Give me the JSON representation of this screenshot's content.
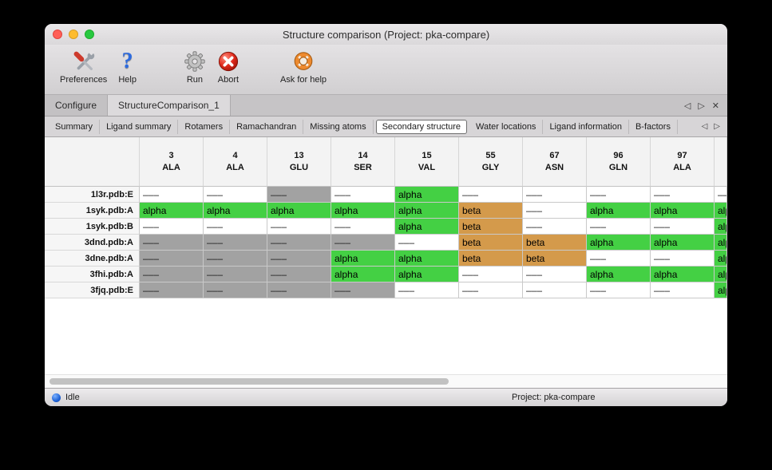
{
  "window": {
    "title": "Structure comparison (Project: pka-compare)"
  },
  "toolbar": {
    "items": [
      {
        "id": "preferences",
        "label": "Preferences",
        "icon": "tools"
      },
      {
        "id": "help",
        "label": "Help",
        "icon": "help"
      },
      {
        "id": "run",
        "label": "Run",
        "icon": "gear"
      },
      {
        "id": "abort",
        "label": "Abort",
        "icon": "abort"
      },
      {
        "id": "ask-for-help",
        "label": "Ask for help",
        "icon": "lifering"
      }
    ]
  },
  "tabbar": {
    "tabs": [
      {
        "label": "Configure",
        "active": false
      },
      {
        "label": "StructureComparison_1",
        "active": true
      }
    ],
    "nav_left": "◁",
    "nav_right": "▷",
    "close": "✕"
  },
  "subtabs": {
    "items": [
      {
        "label": "Summary",
        "active": false
      },
      {
        "label": "Ligand summary",
        "active": false
      },
      {
        "label": "Rotamers",
        "active": false
      },
      {
        "label": "Ramachandran",
        "active": false
      },
      {
        "label": "Missing atoms",
        "active": false
      },
      {
        "label": "Secondary structure",
        "active": true
      },
      {
        "label": "Water locations",
        "active": false
      },
      {
        "label": "Ligand information",
        "active": false
      },
      {
        "label": "B-factors",
        "active": false
      }
    ],
    "nav_left": "◁",
    "nav_right": "▷"
  },
  "table": {
    "columns": [
      {
        "number": "3",
        "residue": "ALA"
      },
      {
        "number": "4",
        "residue": "ALA"
      },
      {
        "number": "13",
        "residue": "GLU"
      },
      {
        "number": "14",
        "residue": "SER"
      },
      {
        "number": "15",
        "residue": "VAL"
      },
      {
        "number": "55",
        "residue": "GLY"
      },
      {
        "number": "67",
        "residue": "ASN"
      },
      {
        "number": "96",
        "residue": "GLN"
      },
      {
        "number": "97",
        "residue": "ALA"
      },
      {
        "number": "",
        "residue": ""
      }
    ],
    "legend": {
      "dash": {
        "text": "–––",
        "bg": "#ffffff",
        "fg": "#1a1a1a"
      },
      "dash_gray": {
        "text": "–––",
        "bg": "#a2a2a2",
        "fg": "#1a1a1a"
      },
      "alpha": {
        "text": "alpha",
        "bg": "#44d044",
        "fg": "#000000"
      },
      "beta": {
        "text": "beta",
        "bg": "#d49a4b",
        "fg": "#000000"
      }
    },
    "rows": [
      {
        "label": "1l3r.pdb:E",
        "cells": [
          "dash",
          "dash",
          "dash_gray",
          "dash",
          "alpha",
          "dash",
          "dash",
          "dash",
          "dash",
          "dash"
        ]
      },
      {
        "label": "1syk.pdb:A",
        "cells": [
          "alpha",
          "alpha",
          "alpha",
          "alpha",
          "alpha",
          "beta",
          "dash",
          "alpha",
          "alpha",
          "alpha"
        ]
      },
      {
        "label": "1syk.pdb:B",
        "cells": [
          "dash",
          "dash",
          "dash",
          "dash",
          "alpha",
          "beta",
          "dash",
          "dash",
          "dash",
          "alpha"
        ]
      },
      {
        "label": "3dnd.pdb:A",
        "cells": [
          "dash_gray",
          "dash_gray",
          "dash_gray",
          "dash_gray",
          "dash",
          "beta",
          "beta",
          "alpha",
          "alpha",
          "alpha"
        ]
      },
      {
        "label": "3dne.pdb:A",
        "cells": [
          "dash_gray",
          "dash_gray",
          "dash_gray",
          "alpha",
          "alpha",
          "beta",
          "beta",
          "dash",
          "dash",
          "alpha"
        ]
      },
      {
        "label": "3fhi.pdb:A",
        "cells": [
          "dash_gray",
          "dash_gray",
          "dash_gray",
          "alpha",
          "alpha",
          "dash",
          "dash",
          "alpha",
          "alpha",
          "alpha"
        ]
      },
      {
        "label": "3fjq.pdb:E",
        "cells": [
          "dash_gray",
          "dash_gray",
          "dash_gray",
          "dash_gray",
          "dash",
          "dash",
          "dash",
          "dash",
          "dash",
          "alpha"
        ]
      }
    ]
  },
  "statusbar": {
    "status": "Idle",
    "project": "Project: pka-compare"
  }
}
